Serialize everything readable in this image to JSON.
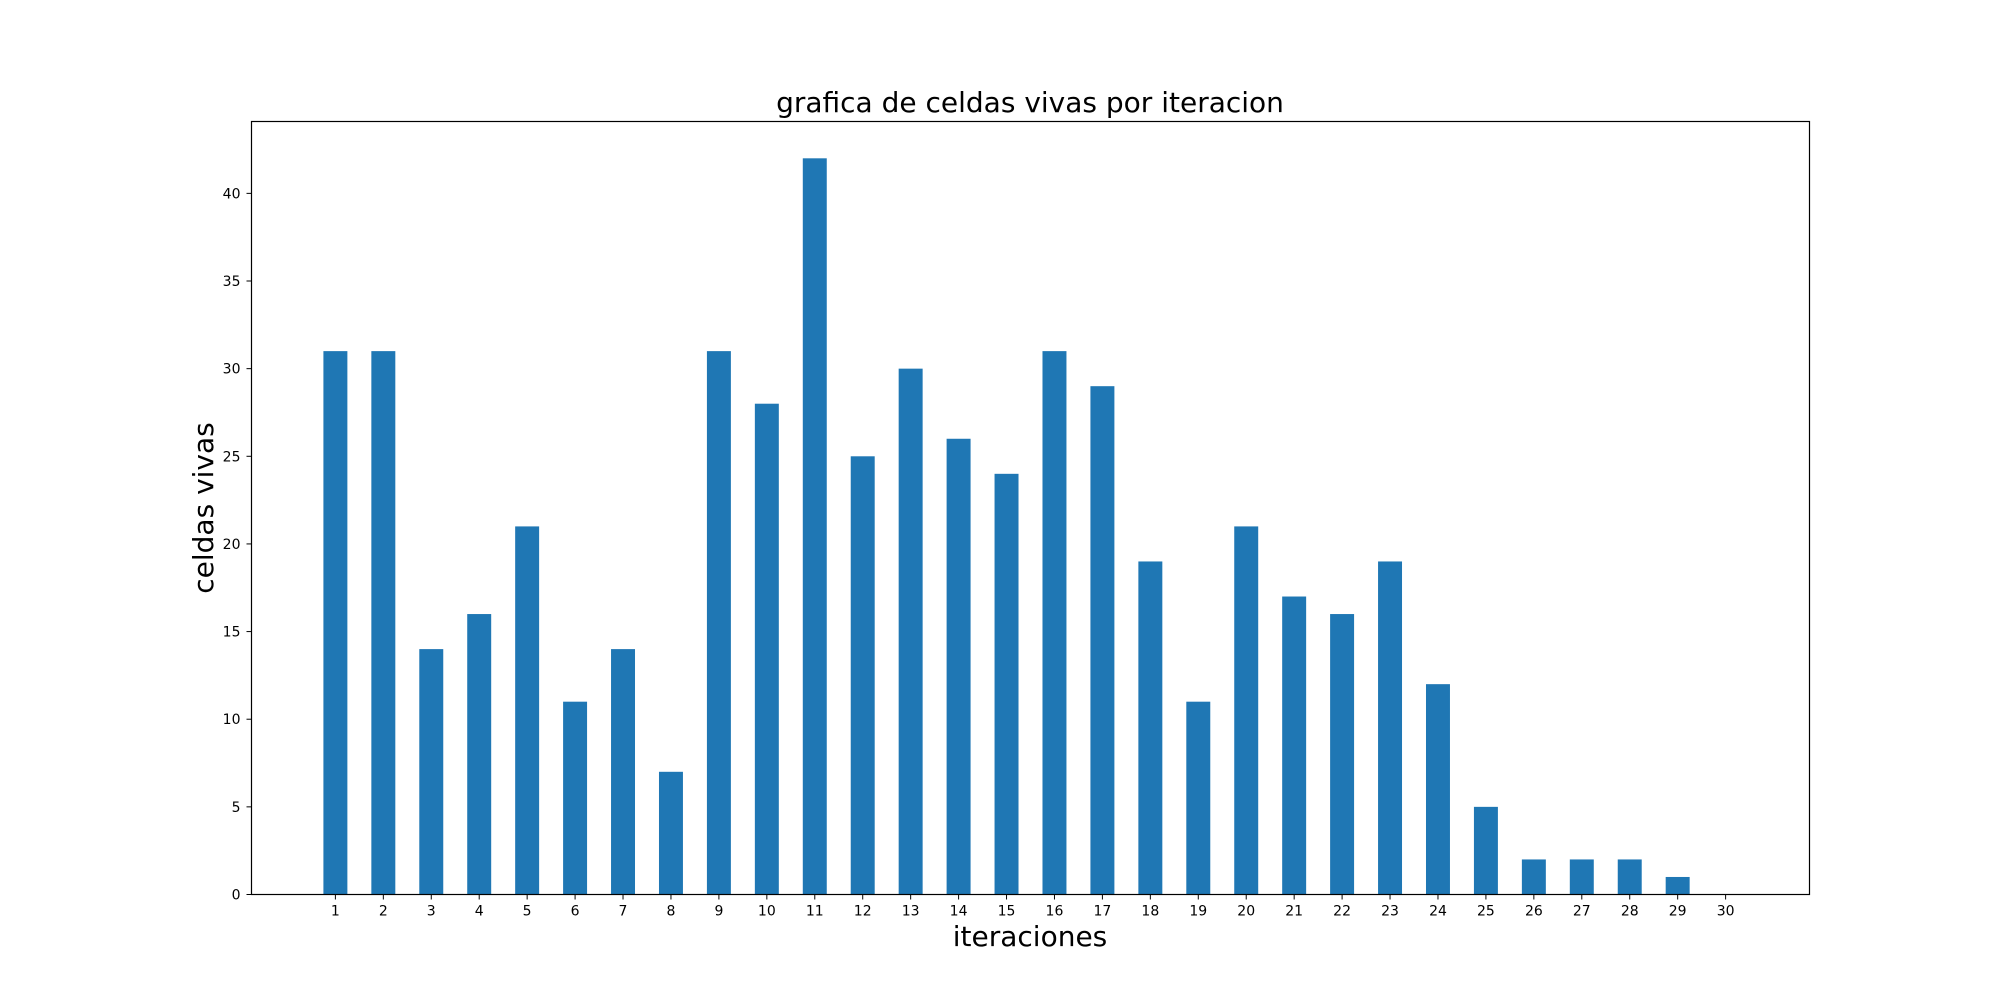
{
  "chart_data": {
    "type": "bar",
    "title": "grafica de celdas vivas por iteracion",
    "xlabel": "iteraciones",
    "ylabel": "celdas vivas",
    "categories": [
      "1",
      "2",
      "3",
      "4",
      "5",
      "6",
      "7",
      "8",
      "9",
      "10",
      "11",
      "12",
      "13",
      "14",
      "15",
      "16",
      "17",
      "18",
      "19",
      "20",
      "21",
      "22",
      "23",
      "24",
      "25",
      "26",
      "27",
      "28",
      "29",
      "30"
    ],
    "values": [
      31,
      31,
      14,
      16,
      21,
      11,
      14,
      7,
      31,
      28,
      42,
      25,
      30,
      26,
      24,
      31,
      29,
      19,
      11,
      21,
      17,
      16,
      19,
      12,
      5,
      2,
      2,
      2,
      1,
      0
    ],
    "yticks": [
      0,
      5,
      10,
      15,
      20,
      25,
      30,
      35,
      40
    ],
    "ylim": [
      0,
      44.1
    ],
    "xlim": [
      -0.75,
      31.75
    ],
    "bar_color": "#1f77b4",
    "grid": false,
    "legend": "none"
  }
}
